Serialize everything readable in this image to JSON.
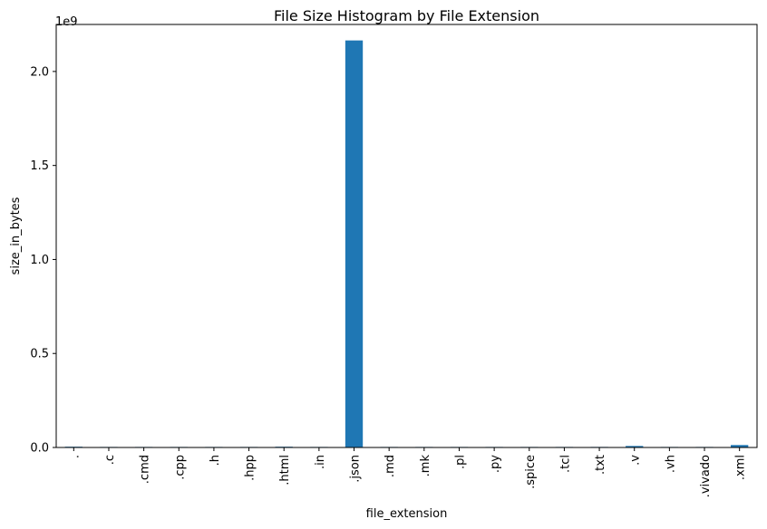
{
  "chart_data": {
    "type": "bar",
    "title": "File Size Histogram by File Extension",
    "xlabel": "file_extension",
    "ylabel": "size_in_bytes",
    "y_offset_label": "1e9",
    "categories": [
      ".",
      ".c",
      ".cmd",
      ".cpp",
      ".h",
      ".hpp",
      ".html",
      ".in",
      ".json",
      ".md",
      ".mk",
      ".pl",
      ".py",
      ".spice",
      ".tcl",
      ".txt",
      ".v",
      ".vh",
      ".vivado",
      ".xml"
    ],
    "values": [
      4000000,
      200000,
      100000,
      300000,
      200000,
      100000,
      4000000,
      100000,
      2165000000,
      200000,
      100000,
      100000,
      300000,
      500000,
      300000,
      3000000,
      8000000,
      300000,
      200000,
      13000000
    ],
    "ylim": [
      0,
      2250000000
    ],
    "yticks": [
      0,
      500000000,
      1000000000,
      1500000000,
      2000000000
    ],
    "ytick_labels": [
      "0.0",
      "0.5",
      "1.0",
      "1.5",
      "2.0"
    ],
    "grid": false,
    "bar_color": "#1f77b4"
  }
}
